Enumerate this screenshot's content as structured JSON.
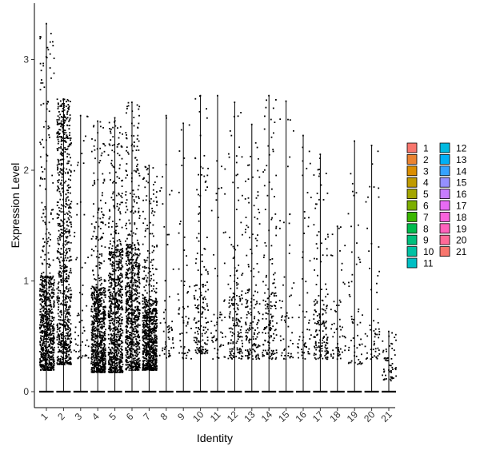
{
  "chart_data": {
    "type": "violin",
    "xlabel": "Identity",
    "ylabel": "Expression Level",
    "yticks": [
      0,
      1,
      2,
      3
    ],
    "ylim": [
      -0.15,
      3.5
    ],
    "categories": [
      "1",
      "2",
      "3",
      "4",
      "5",
      "6",
      "7",
      "8",
      "9",
      "10",
      "11",
      "12",
      "13",
      "14",
      "15",
      "16",
      "17",
      "18",
      "19",
      "20",
      "21"
    ],
    "max_values": [
      3.33,
      2.65,
      2.5,
      2.45,
      2.48,
      2.62,
      2.05,
      2.5,
      2.43,
      2.68,
      2.68,
      2.62,
      2.42,
      2.68,
      2.63,
      2.32,
      2.15,
      1.5,
      2.27,
      2.23,
      0.55
    ],
    "spread_levels": [
      "high",
      "high",
      "low",
      "high",
      "high",
      "high",
      "high",
      "low",
      "low",
      "med",
      "low",
      "med",
      "med",
      "med",
      "low",
      "low",
      "med",
      "low",
      "low",
      "low",
      "low"
    ],
    "dense_bands": [
      [
        0.2,
        1.05
      ],
      [
        0.25,
        2.3
      ],
      [
        0.3,
        0.9
      ],
      [
        0.18,
        0.95
      ],
      [
        0.18,
        1.3
      ],
      [
        0.2,
        1.35
      ],
      [
        0.2,
        0.85
      ],
      [
        0.3,
        0.6
      ],
      [
        0.3,
        0.8
      ],
      [
        0.35,
        1.0
      ],
      [
        0.3,
        0.7
      ],
      [
        0.3,
        0.9
      ],
      [
        0.3,
        0.95
      ],
      [
        0.3,
        1.0
      ],
      [
        0.3,
        0.8
      ],
      [
        0.3,
        0.7
      ],
      [
        0.3,
        0.8
      ],
      [
        0.3,
        0.6
      ],
      [
        0.25,
        0.7
      ],
      [
        0.3,
        0.6
      ],
      [
        0.1,
        0.3
      ]
    ],
    "legend": {
      "entries": [
        "1",
        "2",
        "3",
        "4",
        "5",
        "6",
        "7",
        "8",
        "9",
        "10",
        "11",
        "12",
        "13",
        "14",
        "15",
        "16",
        "17",
        "18",
        "19",
        "20",
        "21"
      ],
      "colors": [
        "#F8766D",
        "#EA8331",
        "#DB8E00",
        "#C09B00",
        "#A3A500",
        "#7CAE00",
        "#39B600",
        "#00BB4E",
        "#00BF7D",
        "#00C1A3",
        "#00BFC4",
        "#00BAE0",
        "#00B0F6",
        "#35A2FF",
        "#9590FF",
        "#C77CFF",
        "#E76BF3",
        "#FA62DB",
        "#FF62BC",
        "#FF6A98",
        "#F8766D"
      ]
    }
  }
}
